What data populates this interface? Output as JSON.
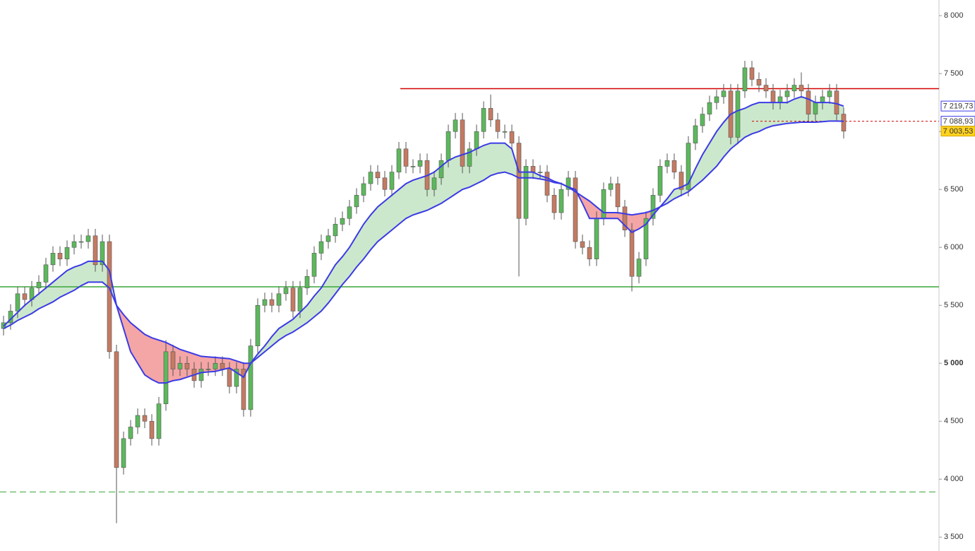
{
  "chart_data": {
    "type": "candlestick",
    "ylim": [
      3380,
      8135
    ],
    "yticks": [
      {
        "value": 8000,
        "label": "8 000"
      },
      {
        "value": 7500,
        "label": "7 500"
      },
      {
        "value": 7000,
        "label": "7 000"
      },
      {
        "value": 6500,
        "label": "6 500"
      },
      {
        "value": 6000,
        "label": "6 000"
      },
      {
        "value": 5500,
        "label": "5 500"
      },
      {
        "value": 5000,
        "label": "5 000",
        "emphasis": true
      },
      {
        "value": 4500,
        "label": "4 500"
      },
      {
        "value": 4000,
        "label": "4 000"
      },
      {
        "value": 3500,
        "label": "3 500"
      }
    ],
    "candles": {
      "up_color": "#5cb85c",
      "down_color": "#c47a62",
      "last_label": "7 003,53",
      "open": [
        5300,
        5350,
        5450,
        5600,
        5550,
        5650,
        5700,
        5850,
        5950,
        5900,
        6000,
        6050,
        6050,
        6100,
        5850,
        6050,
        5100,
        4100,
        4350,
        4450,
        4550,
        4500,
        4350,
        4650,
        5100,
        4950,
        5000,
        4950,
        4850,
        4950,
        4950,
        5000,
        4950,
        4800,
        4950,
        4600,
        5150,
        5500,
        5550,
        5500,
        5600,
        5650,
        5450,
        5650,
        5750,
        5950,
        6050,
        6100,
        6200,
        6250,
        6350,
        6450,
        6550,
        6650,
        6600,
        6500,
        6650,
        6850,
        6700,
        6700,
        6750,
        6500,
        6600,
        6750,
        7000,
        7100,
        6700,
        6850,
        7000,
        7200,
        7100,
        7000,
        7000,
        6900,
        6250,
        6700,
        6650,
        6650,
        6450,
        6300,
        6500,
        6600,
        6050,
        6000,
        5900,
        6250,
        6500,
        6550,
        6350,
        6150,
        5750,
        5900,
        6250,
        6450,
        6700,
        6750,
        6650,
        6500,
        6900,
        7050,
        7150,
        7250,
        7300,
        7350,
        6950,
        7350,
        7550,
        7450,
        7400,
        7350,
        7250,
        7300,
        7350,
        7400,
        7350,
        7150,
        7250,
        7300,
        7350,
        7150
      ],
      "high": [
        5410,
        5510,
        5660,
        5660,
        5710,
        5760,
        5910,
        6010,
        6010,
        6060,
        6110,
        6110,
        6160,
        6160,
        6110,
        6110,
        5160,
        4410,
        4510,
        4610,
        4610,
        4560,
        4710,
        5200,
        5160,
        5060,
        5060,
        5010,
        5010,
        5010,
        5060,
        5060,
        5010,
        5010,
        5010,
        5210,
        5560,
        5610,
        5610,
        5660,
        5710,
        5710,
        5710,
        5810,
        6010,
        6110,
        6160,
        6260,
        6310,
        6410,
        6510,
        6610,
        6710,
        6710,
        6660,
        6710,
        6910,
        6910,
        6760,
        6810,
        6810,
        6660,
        6810,
        7060,
        7160,
        7160,
        6910,
        7060,
        7260,
        7320,
        7160,
        7060,
        7060,
        6960,
        6760,
        6760,
        6710,
        6710,
        6510,
        6560,
        6660,
        6660,
        6110,
        6060,
        6310,
        6560,
        6610,
        6610,
        6410,
        6210,
        5960,
        6310,
        6510,
        6760,
        6810,
        6810,
        6710,
        6960,
        7110,
        7210,
        7310,
        7360,
        7410,
        7410,
        7410,
        7610,
        7610,
        7510,
        7460,
        7410,
        7360,
        7410,
        7460,
        7510,
        7410,
        7310,
        7360,
        7410,
        7410,
        7210
      ],
      "low": [
        5240,
        5290,
        5390,
        5490,
        5490,
        5590,
        5640,
        5790,
        5840,
        5840,
        5940,
        5990,
        5990,
        5790,
        5790,
        5040,
        3620,
        4040,
        4290,
        4390,
        4440,
        4290,
        4290,
        4590,
        4890,
        4890,
        4890,
        4790,
        4790,
        4890,
        4890,
        4890,
        4740,
        4740,
        4540,
        4540,
        5090,
        5440,
        5440,
        5440,
        5540,
        5390,
        5390,
        5590,
        5690,
        5890,
        5990,
        6040,
        6140,
        6190,
        6290,
        6390,
        6490,
        6540,
        6440,
        6440,
        6590,
        6640,
        6640,
        6640,
        6440,
        6440,
        6540,
        6690,
        6940,
        6640,
        6640,
        6790,
        6940,
        7040,
        6940,
        6940,
        6840,
        5750,
        6190,
        6590,
        6590,
        6390,
        6240,
        6240,
        6440,
        5990,
        5940,
        5840,
        5840,
        6190,
        6440,
        6290,
        6090,
        5620,
        5690,
        5840,
        6190,
        6390,
        6640,
        6590,
        6440,
        6440,
        6840,
        6990,
        7090,
        7190,
        7240,
        6890,
        6890,
        7290,
        7390,
        7340,
        7290,
        7190,
        7190,
        7240,
        7290,
        7290,
        7090,
        7090,
        7190,
        7240,
        7090,
        6940
      ],
      "close": [
        5350,
        5450,
        5600,
        5550,
        5650,
        5700,
        5850,
        5950,
        5900,
        6000,
        6050,
        6050,
        6100,
        5850,
        6050,
        5100,
        4100,
        4350,
        4450,
        4550,
        4500,
        4350,
        4650,
        5100,
        4950,
        5000,
        4950,
        4850,
        4950,
        4950,
        5000,
        4950,
        4800,
        4950,
        4600,
        5150,
        5500,
        5550,
        5500,
        5600,
        5650,
        5450,
        5650,
        5750,
        5950,
        6050,
        6100,
        6200,
        6250,
        6350,
        6450,
        6550,
        6650,
        6600,
        6500,
        6650,
        6850,
        6700,
        6700,
        6750,
        6500,
        6600,
        6750,
        7000,
        7100,
        6700,
        6850,
        7000,
        7200,
        7100,
        7000,
        7000,
        6900,
        6250,
        6700,
        6650,
        6650,
        6450,
        6300,
        6500,
        6600,
        6050,
        6000,
        5900,
        6250,
        6500,
        6550,
        6350,
        6150,
        5750,
        5900,
        6250,
        6450,
        6700,
        6750,
        6650,
        6500,
        6900,
        7050,
        7150,
        7250,
        7300,
        7350,
        6950,
        7350,
        7550,
        7450,
        7400,
        7350,
        7250,
        7300,
        7350,
        7400,
        7350,
        7150,
        7250,
        7300,
        7350,
        7150,
        7003.53
      ]
    },
    "moving_averages": [
      {
        "color": "#3b3be6",
        "last_label": "7 219,73",
        "values": [
          5320,
          5380,
          5440,
          5500,
          5550,
          5600,
          5650,
          5700,
          5750,
          5800,
          5830,
          5850,
          5880,
          5880,
          5880,
          5800,
          5500,
          5300,
          5100,
          5000,
          4900,
          4860,
          4830,
          4830,
          4850,
          4860,
          4880,
          4900,
          4920,
          4925,
          4930,
          4945,
          4960,
          4920,
          4880,
          5000,
          5080,
          5150,
          5230,
          5300,
          5340,
          5380,
          5440,
          5500,
          5580,
          5650,
          5750,
          5850,
          5920,
          6000,
          6100,
          6200,
          6280,
          6350,
          6400,
          6450,
          6500,
          6550,
          6580,
          6600,
          6620,
          6650,
          6700,
          6750,
          6780,
          6800,
          6820,
          6850,
          6880,
          6900,
          6900,
          6900,
          6850,
          6650,
          6650,
          6650,
          6620,
          6600,
          6570,
          6550,
          6520,
          6500,
          6380,
          6250,
          6250,
          6250,
          6250,
          6250,
          6190,
          6130,
          6160,
          6200,
          6280,
          6350,
          6420,
          6500,
          6520,
          6550,
          6680,
          6800,
          6900,
          7000,
          7080,
          7150,
          7180,
          7200,
          7230,
          7250,
          7250,
          7250,
          7250,
          7250,
          7280,
          7300,
          7280,
          7250,
          7250,
          7250,
          7240,
          7219.73
        ]
      },
      {
        "color": "#3b3be6",
        "last_label": "7 088,93",
        "values": [
          5300,
          5330,
          5370,
          5400,
          5430,
          5470,
          5500,
          5530,
          5570,
          5600,
          5630,
          5670,
          5700,
          5700,
          5700,
          5650,
          5500,
          5420,
          5350,
          5300,
          5250,
          5220,
          5200,
          5180,
          5150,
          5120,
          5100,
          5080,
          5060,
          5055,
          5050,
          5045,
          5040,
          5020,
          5000,
          5000,
          5050,
          5100,
          5150,
          5200,
          5240,
          5270,
          5310,
          5350,
          5400,
          5450,
          5520,
          5600,
          5680,
          5750,
          5830,
          5900,
          5980,
          6050,
          6100,
          6150,
          6200,
          6250,
          6280,
          6300,
          6320,
          6350,
          6380,
          6420,
          6460,
          6500,
          6520,
          6550,
          6580,
          6620,
          6640,
          6650,
          6630,
          6600,
          6600,
          6600,
          6590,
          6580,
          6560,
          6550,
          6520,
          6480,
          6440,
          6400,
          6350,
          6300,
          6300,
          6300,
          6290,
          6280,
          6290,
          6300,
          6320,
          6350,
          6380,
          6420,
          6450,
          6480,
          6530,
          6580,
          6640,
          6700,
          6780,
          6850,
          6900,
          6950,
          6980,
          7000,
          7030,
          7050,
          7060,
          7070,
          7075,
          7080,
          7080,
          7080,
          7085,
          7090,
          7090,
          7088.93
        ]
      }
    ],
    "fill_up": "#8fcb8f",
    "fill_down": "#f07f7f",
    "levels": [
      {
        "value": 7370,
        "color": "#d40000",
        "style": "solid"
      },
      {
        "value": 5660,
        "color": "#3aa63a",
        "style": "solid"
      },
      {
        "value": 3890,
        "color": "#3aa63a",
        "style": "dashed"
      },
      {
        "value": 7088.93,
        "color": "#d40000",
        "style": "dotted"
      }
    ]
  }
}
